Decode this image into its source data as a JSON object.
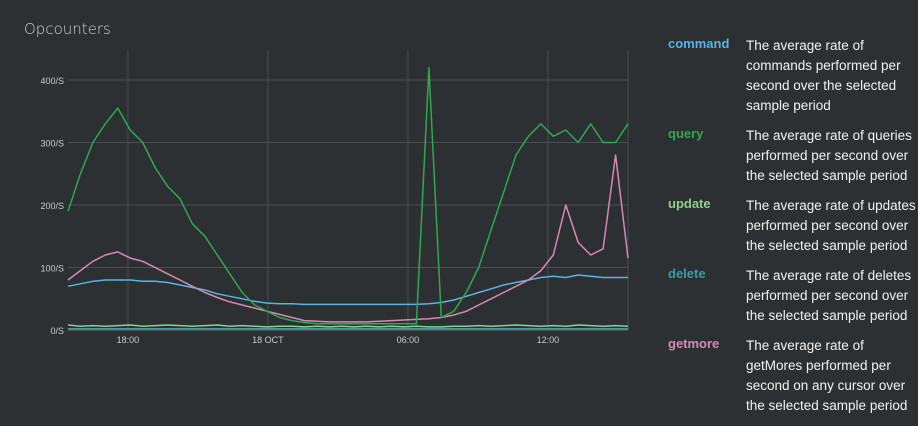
{
  "panel": {
    "title": "Opcounters"
  },
  "chart_data": {
    "type": "line",
    "title": "Opcounters",
    "ylim": [
      0,
      400
    ],
    "y_ticks": [
      "0/S",
      "100/S",
      "200/S",
      "300/S",
      "400/S"
    ],
    "x_ticks": [
      "18:00",
      "18 OCT",
      "06:00",
      "12:00"
    ],
    "grid": true,
    "series": [
      {
        "name": "command",
        "color": "#56b4e6",
        "values": [
          70,
          74,
          78,
          80,
          80,
          80,
          78,
          78,
          76,
          72,
          68,
          64,
          58,
          54,
          50,
          46,
          43,
          42,
          42,
          41,
          41,
          41,
          41,
          41,
          41,
          41,
          41,
          41,
          41,
          42,
          44,
          48,
          54,
          60,
          66,
          72,
          76,
          80,
          84,
          86,
          84,
          88,
          86,
          84,
          84,
          84
        ]
      },
      {
        "name": "query",
        "color": "#2fa84f",
        "values": [
          190,
          250,
          300,
          330,
          355,
          320,
          300,
          260,
          230,
          210,
          170,
          150,
          120,
          90,
          60,
          40,
          30,
          20,
          15,
          12,
          10,
          10,
          10,
          10,
          10,
          10,
          10,
          10,
          10,
          420,
          20,
          30,
          60,
          100,
          160,
          220,
          280,
          310,
          330,
          310,
          320,
          300,
          330,
          300,
          300,
          330
        ]
      },
      {
        "name": "update",
        "color": "#8fcf8a",
        "values": [
          8,
          6,
          7,
          6,
          7,
          8,
          6,
          7,
          8,
          7,
          6,
          7,
          8,
          6,
          7,
          6,
          5,
          6,
          6,
          5,
          6,
          5,
          6,
          5,
          6,
          5,
          6,
          5,
          6,
          5,
          5,
          6,
          6,
          7,
          6,
          7,
          8,
          7,
          6,
          7,
          6,
          8,
          7,
          6,
          7,
          6
        ]
      },
      {
        "name": "delete",
        "color": "#3f9aa2",
        "values": [
          2,
          2,
          2,
          2,
          2,
          2,
          2,
          2,
          2,
          2,
          2,
          2,
          2,
          2,
          2,
          2,
          2,
          2,
          2,
          2,
          2,
          2,
          2,
          2,
          2,
          2,
          2,
          2,
          2,
          2,
          2,
          2,
          2,
          2,
          2,
          2,
          2,
          2,
          2,
          2,
          2,
          2,
          2,
          2,
          2,
          2
        ]
      },
      {
        "name": "getmore",
        "color": "#d988b6",
        "values": [
          80,
          95,
          110,
          120,
          125,
          115,
          110,
          100,
          90,
          80,
          70,
          60,
          52,
          45,
          40,
          35,
          30,
          25,
          20,
          15,
          14,
          13,
          13,
          13,
          13,
          14,
          15,
          16,
          17,
          18,
          20,
          24,
          30,
          40,
          50,
          60,
          70,
          80,
          95,
          120,
          200,
          140,
          120,
          130,
          280,
          115
        ]
      }
    ]
  },
  "legend": [
    {
      "name": "command",
      "color": "#56b4e6",
      "description": "The average rate of commands performed per second over the selected sample period"
    },
    {
      "name": "query",
      "color": "#2fa84f",
      "description": "The average rate of queries performed per second over the selected sample period"
    },
    {
      "name": "update",
      "color": "#8fcf8a",
      "description": "The average rate of updates performed per second over the selected sample period"
    },
    {
      "name": "delete",
      "color": "#3f9aa2",
      "description": "The average rate of deletes performed per second over the selected sample period"
    },
    {
      "name": "getmore",
      "color": "#d988b6",
      "description": "The average rate of getMores performed per second on any cursor over the selected sample period"
    }
  ]
}
